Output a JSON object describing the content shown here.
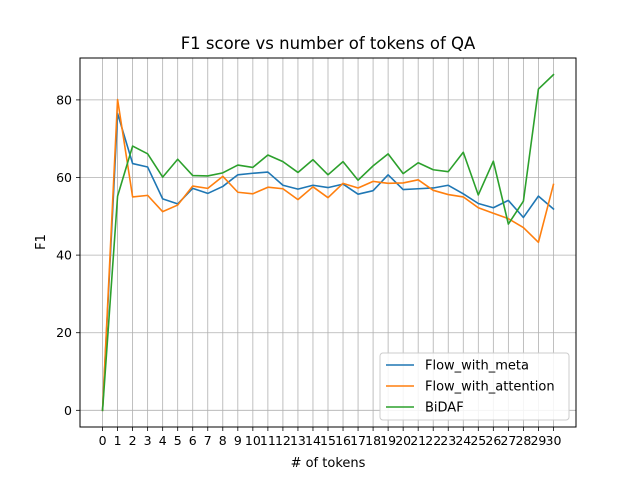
{
  "chart_data": {
    "type": "line",
    "title": "F1 score vs number of tokens of QA",
    "xlabel": "# of tokens",
    "ylabel": "F1",
    "x": [
      0,
      1,
      2,
      3,
      4,
      5,
      6,
      7,
      8,
      9,
      10,
      11,
      12,
      13,
      14,
      15,
      16,
      17,
      18,
      19,
      20,
      21,
      22,
      23,
      24,
      25,
      26,
      27,
      28,
      29,
      30
    ],
    "xlim": [
      -1.5,
      31.5
    ],
    "ylim": [
      -4.3,
      90.8
    ],
    "yticks": [
      0,
      20,
      40,
      60,
      80
    ],
    "grid": true,
    "legend_position": "lower-right",
    "series": [
      {
        "name": "Flow_with_meta",
        "color": "#1f77b4",
        "values": [
          0,
          76.5,
          63.6,
          62.7,
          54.5,
          53.2,
          57.2,
          55.9,
          57.7,
          60.7,
          61.1,
          61.4,
          58.0,
          57.0,
          58.0,
          57.4,
          58.3,
          55.7,
          56.6,
          60.7,
          56.9,
          57.1,
          57.3,
          58.0,
          55.8,
          53.3,
          52.2,
          54.1,
          49.7,
          55.2,
          51.9
        ]
      },
      {
        "name": "Flow_with_attention",
        "color": "#ff7f0e",
        "values": [
          0,
          80.1,
          55.0,
          55.4,
          51.2,
          52.9,
          57.8,
          57.2,
          60.3,
          56.2,
          55.8,
          57.5,
          57.1,
          54.3,
          57.6,
          54.8,
          58.5,
          57.3,
          59.0,
          58.5,
          58.6,
          59.4,
          56.7,
          55.6,
          55.0,
          52.2,
          50.8,
          49.4,
          47.1,
          43.3,
          58.2
        ]
      },
      {
        "name": "BiDAF",
        "color": "#2ca02c",
        "values": [
          0,
          55.2,
          68.1,
          66.1,
          60.1,
          64.7,
          60.5,
          60.4,
          61.2,
          63.2,
          62.6,
          65.8,
          64.1,
          61.3,
          64.6,
          60.7,
          64.1,
          59.3,
          63.0,
          66.1,
          61.0,
          63.8,
          62.0,
          61.5,
          66.5,
          55.5,
          64.2,
          48.0,
          53.9,
          82.8,
          86.5
        ]
      }
    ]
  }
}
